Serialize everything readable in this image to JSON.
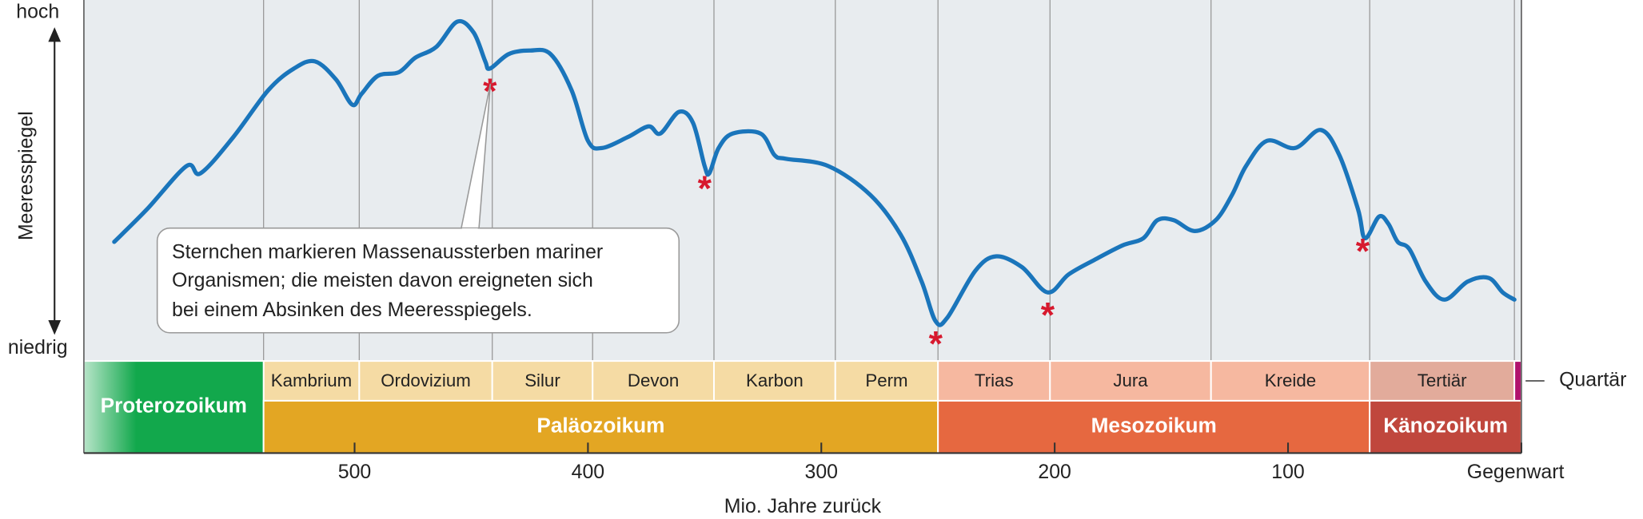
{
  "chart_data": {
    "type": "line",
    "y_axis_label": "Meeresspiegel",
    "x_axis_label": "Mio. Jahre zurück",
    "xlim": [
      616,
      0
    ],
    "ylim": [
      0,
      100
    ],
    "xticks": [
      500,
      400,
      300,
      200,
      100,
      {
        "value": 0,
        "label": "Gegenwart"
      }
    ],
    "yticks": [
      {
        "value": 0,
        "label": "niedrig"
      },
      {
        "value": 100,
        "label": "hoch"
      }
    ],
    "color": "#1a75bb",
    "x": [
      603,
      589,
      572,
      566,
      552,
      537,
      526,
      517,
      508,
      501,
      497,
      490,
      481,
      474,
      465,
      456,
      449,
      444,
      442,
      434,
      425,
      416,
      407,
      400,
      394,
      383,
      374,
      369,
      361,
      355,
      350,
      348,
      344,
      338,
      326,
      320,
      315,
      297,
      279,
      266,
      257,
      251,
      246,
      234,
      225,
      214,
      203,
      194,
      183,
      171,
      162,
      156,
      149,
      140,
      131,
      124,
      118,
      109,
      97,
      86,
      78,
      70,
      67,
      61,
      57,
      53,
      48,
      41,
      33,
      23,
      14,
      8,
      3
    ],
    "values": [
      33,
      42,
      54,
      52,
      62,
      75,
      81,
      83,
      78,
      71,
      74,
      79,
      80,
      84,
      87,
      94,
      91,
      83,
      81,
      85,
      86,
      85,
      75,
      61,
      59,
      62,
      65,
      63,
      69,
      66,
      54,
      52,
      59,
      63,
      63,
      57,
      56,
      54,
      46,
      35,
      22,
      11,
      12,
      25,
      29,
      26,
      19,
      24,
      28,
      32,
      34,
      39,
      39,
      36,
      39,
      46,
      54,
      61,
      59,
      64,
      57,
      42,
      34,
      40,
      38,
      33,
      31,
      22,
      17,
      22,
      23,
      19,
      17
    ],
    "extinctions": {
      "marker": "*",
      "color": "#d7192e",
      "x": [
        442,
        350,
        251,
        203,
        68
      ]
    },
    "annotation": [
      "Sternchen markieren Massenaussterben mariner",
      "Organismen; die meisten davon ereigneten sich",
      "bei einem Absinken des Meeresspiegels."
    ],
    "periods": [
      {
        "name": "Kambrium",
        "start": 539,
        "end": 498,
        "color": "#f5dba4"
      },
      {
        "name": "Ordovizium",
        "start": 498,
        "end": 441,
        "color": "#f5dba4"
      },
      {
        "name": "Silur",
        "start": 441,
        "end": 398,
        "color": "#f5dba4"
      },
      {
        "name": "Devon",
        "start": 398,
        "end": 346,
        "color": "#f5dba4"
      },
      {
        "name": "Karbon",
        "start": 346,
        "end": 294,
        "color": "#f5dba4"
      },
      {
        "name": "Perm",
        "start": 294,
        "end": 250,
        "color": "#f5dba4"
      },
      {
        "name": "Trias",
        "start": 250,
        "end": 202,
        "color": "#f6b8a0"
      },
      {
        "name": "Jura",
        "start": 202,
        "end": 133,
        "color": "#f6b8a0"
      },
      {
        "name": "Kreide",
        "start": 133,
        "end": 65,
        "color": "#f6b8a0"
      },
      {
        "name": "Tertiär",
        "start": 65,
        "end": 3,
        "color": "#e2ab9b"
      },
      {
        "name": "Quartär",
        "start": 3,
        "end": 0,
        "color": "#b0126c"
      }
    ],
    "eras": [
      {
        "name": "Proterozoikum",
        "start": 616,
        "end": 539,
        "color": "#12a84c"
      },
      {
        "name": "Paläozoikum",
        "start": 539,
        "end": 250,
        "color": "#e3a623"
      },
      {
        "name": "Mesozoikum",
        "start": 250,
        "end": 65,
        "color": "#e66840"
      },
      {
        "name": "Känozoikum",
        "start": 65,
        "end": 0,
        "color": "#c0473d"
      }
    ]
  }
}
